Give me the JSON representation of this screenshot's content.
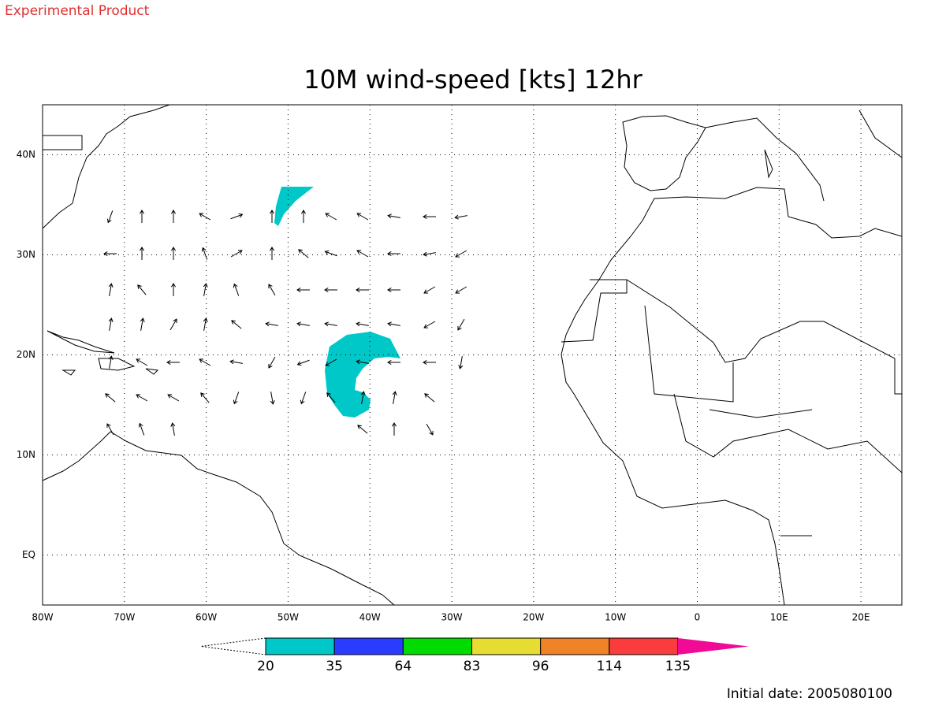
{
  "header": {
    "product": "Experimental Product",
    "title": "10M wind-speed [kts] 12hr"
  },
  "map": {
    "lonlim": [
      -80,
      25
    ],
    "latlim": [
      -5,
      45
    ],
    "xticks": [
      {
        "value": -80,
        "label": "80W"
      },
      {
        "value": -70,
        "label": "70W"
      },
      {
        "value": -60,
        "label": "60W"
      },
      {
        "value": -50,
        "label": "50W"
      },
      {
        "value": -40,
        "label": "40W"
      },
      {
        "value": -30,
        "label": "30W"
      },
      {
        "value": -20,
        "label": "20W"
      },
      {
        "value": -10,
        "label": "10W"
      },
      {
        "value": 0,
        "label": "0"
      },
      {
        "value": 10,
        "label": "10E"
      },
      {
        "value": 20,
        "label": "20E"
      }
    ],
    "yticks": [
      {
        "value": 40,
        "label": "40N"
      },
      {
        "value": 30,
        "label": "30N"
      },
      {
        "value": 20,
        "label": "20N"
      },
      {
        "value": 10,
        "label": "10N"
      },
      {
        "value": 0,
        "label": "EQ"
      }
    ],
    "grid": true
  },
  "colorbar": {
    "levels": [
      20,
      35,
      64,
      83,
      96,
      114,
      135
    ],
    "colors": [
      "#00c8c8",
      "#2a3cff",
      "#00dc00",
      "#e6dc32",
      "#f08228",
      "#fa3c3c",
      "#f00a96"
    ]
  },
  "footer": {
    "initial_date": "Initial date: 2005080100"
  }
}
